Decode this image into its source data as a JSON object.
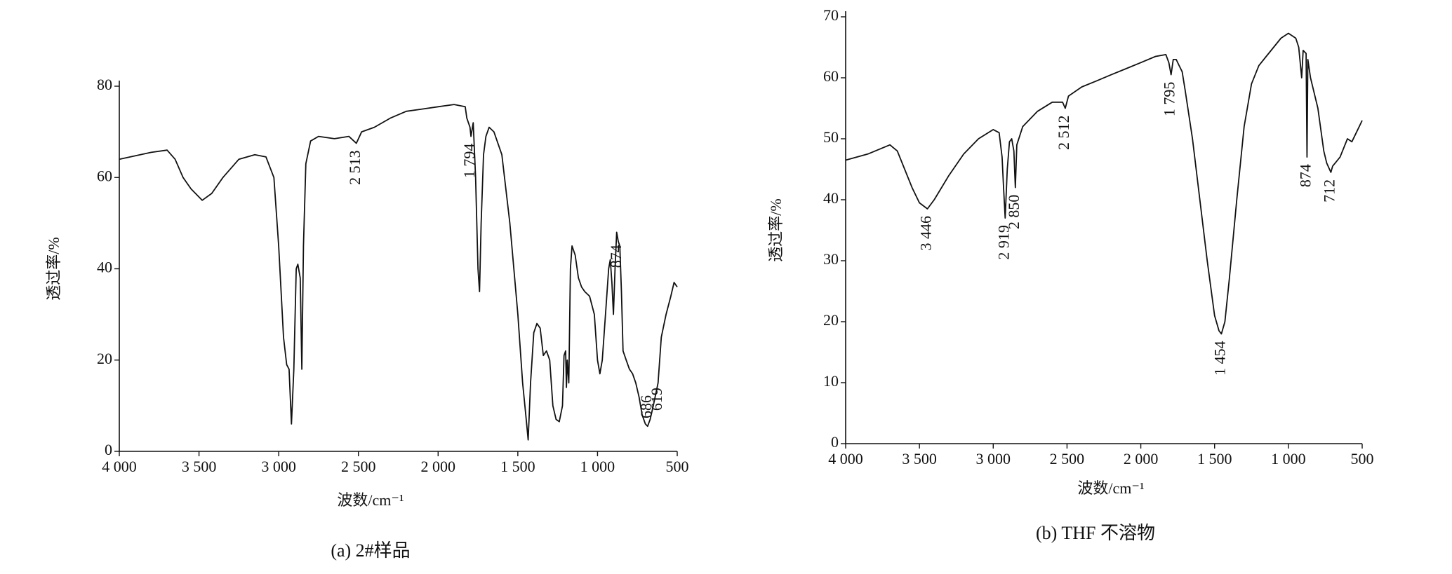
{
  "chart_data": [
    {
      "type": "line",
      "caption": "(a) 2#样品",
      "xlabel": "波数/cm⁻¹",
      "ylabel": "透过率/%",
      "xlim": [
        4000,
        500
      ],
      "ylim": [
        0,
        80
      ],
      "xticks": [
        {
          "value": 4000,
          "label": "4 000"
        },
        {
          "value": 3500,
          "label": "3 500"
        },
        {
          "value": 3000,
          "label": "3 000"
        },
        {
          "value": 2500,
          "label": "2 500"
        },
        {
          "value": 2000,
          "label": "2 000"
        },
        {
          "value": 1500,
          "label": "1 500"
        },
        {
          "value": 1000,
          "label": "1 000"
        },
        500
      ],
      "yticks": [
        0,
        20,
        40,
        60,
        80
      ],
      "color": "#111111",
      "x": [
        4000,
        3800,
        3700,
        3650,
        3600,
        3550,
        3480,
        3420,
        3350,
        3250,
        3150,
        3080,
        3030,
        3000,
        2970,
        2950,
        2935,
        2920,
        2905,
        2890,
        2880,
        2865,
        2855,
        2845,
        2830,
        2800,
        2750,
        2650,
        2560,
        2513,
        2480,
        2400,
        2300,
        2200,
        2100,
        2000,
        1900,
        1830,
        1820,
        1800,
        1794,
        1780,
        1765,
        1750,
        1740,
        1730,
        1715,
        1700,
        1680,
        1650,
        1600,
        1550,
        1500,
        1470,
        1450,
        1435,
        1420,
        1400,
        1380,
        1360,
        1340,
        1320,
        1300,
        1280,
        1260,
        1240,
        1220,
        1210,
        1200,
        1195,
        1190,
        1180,
        1170,
        1160,
        1140,
        1120,
        1100,
        1080,
        1050,
        1020,
        1000,
        985,
        970,
        950,
        930,
        920,
        910,
        900,
        890,
        880,
        870,
        860,
        850,
        840,
        820,
        800,
        780,
        760,
        740,
        720,
        700,
        686,
        670,
        650,
        620,
        600,
        570,
        540,
        520,
        500
      ],
      "values": [
        64,
        65.5,
        66,
        64,
        60,
        57.5,
        55,
        56.5,
        60,
        64,
        65,
        64.5,
        60,
        45,
        25,
        19,
        18,
        6,
        18,
        40,
        41,
        38,
        18,
        45,
        63,
        68,
        69,
        68.5,
        69,
        67.5,
        70,
        71,
        73,
        74.5,
        75,
        75.5,
        76,
        75.5,
        73,
        71,
        69,
        72,
        60,
        40,
        35,
        50,
        65,
        69,
        71,
        70,
        65,
        50,
        30,
        15,
        8,
        2.5,
        15,
        26,
        28,
        27,
        21,
        22,
        20,
        10,
        7,
        6.5,
        10,
        21,
        22,
        14,
        20,
        15,
        40,
        45,
        43,
        38,
        36,
        35,
        34,
        30,
        20,
        17,
        20,
        30,
        40,
        42,
        37,
        30,
        40,
        48,
        46,
        45,
        35,
        22,
        20,
        18,
        17,
        15,
        12,
        8,
        6,
        5.5,
        7,
        10,
        15,
        25,
        30,
        34,
        37,
        36
      ],
      "annotations": [
        {
          "x": 2513,
          "label": "2 513"
        },
        {
          "x": 1794,
          "label": "1 794"
        },
        {
          "x": 874,
          "label": "874"
        },
        {
          "x": 686,
          "label": "686"
        },
        {
          "x": 619,
          "label": "619"
        }
      ]
    },
    {
      "type": "line",
      "caption": "(b) THF 不溶物",
      "xlabel": "波数/cm⁻¹",
      "ylabel": "透过率/%",
      "xlim": [
        4000,
        500
      ],
      "ylim": [
        0,
        70
      ],
      "xticks": [
        {
          "value": 4000,
          "label": "4 000"
        },
        {
          "value": 3500,
          "label": "3 500"
        },
        {
          "value": 3000,
          "label": "3 000"
        },
        {
          "value": 2500,
          "label": "2 500"
        },
        {
          "value": 2000,
          "label": "2 000"
        },
        {
          "value": 1500,
          "label": "1 500"
        },
        {
          "value": 1000,
          "label": "1 000"
        },
        500
      ],
      "yticks": [
        0,
        10,
        20,
        30,
        40,
        50,
        60,
        70
      ],
      "color": "#111111",
      "x": [
        4000,
        3850,
        3700,
        3650,
        3600,
        3550,
        3500,
        3446,
        3400,
        3300,
        3200,
        3100,
        3000,
        2960,
        2940,
        2930,
        2919,
        2905,
        2890,
        2875,
        2860,
        2850,
        2840,
        2800,
        2700,
        2600,
        2530,
        2512,
        2490,
        2400,
        2300,
        2200,
        2100,
        2000,
        1900,
        1830,
        1810,
        1795,
        1780,
        1760,
        1740,
        1720,
        1700,
        1650,
        1600,
        1550,
        1500,
        1470,
        1454,
        1430,
        1400,
        1350,
        1300,
        1250,
        1200,
        1150,
        1100,
        1050,
        1000,
        950,
        930,
        910,
        900,
        880,
        874,
        868,
        850,
        800,
        760,
        740,
        712,
        700,
        650,
        600,
        570,
        540,
        520,
        500
      ],
      "values": [
        46.5,
        47.5,
        49,
        48,
        45,
        42,
        39.5,
        38.5,
        40,
        44,
        47.5,
        50,
        51.5,
        51,
        47,
        42,
        37,
        45,
        49.5,
        50,
        48,
        42,
        49,
        52,
        54.5,
        56,
        56,
        55,
        57,
        58.5,
        59.5,
        60.5,
        61.5,
        62.5,
        63.5,
        63.8,
        62.5,
        60.5,
        63,
        63,
        62,
        61,
        58,
        50,
        40,
        30,
        21,
        18.5,
        18,
        20,
        27,
        40,
        52,
        59,
        62,
        63.5,
        65,
        66.5,
        67.3,
        66.5,
        65,
        60,
        64.5,
        64,
        47,
        63,
        60,
        55,
        48,
        46,
        44.5,
        45.5,
        47,
        50,
        49.5,
        51,
        52,
        53
      ],
      "annotations": [
        {
          "x": 3446,
          "label": "3 446"
        },
        {
          "x": 2919,
          "label": "2 919"
        },
        {
          "x": 2850,
          "label": "2 850"
        },
        {
          "x": 2512,
          "label": "2 512"
        },
        {
          "x": 1795,
          "label": "1 795"
        },
        {
          "x": 1454,
          "label": "1 454"
        },
        {
          "x": 874,
          "label": "874"
        },
        {
          "x": 712,
          "label": "712"
        }
      ]
    }
  ]
}
